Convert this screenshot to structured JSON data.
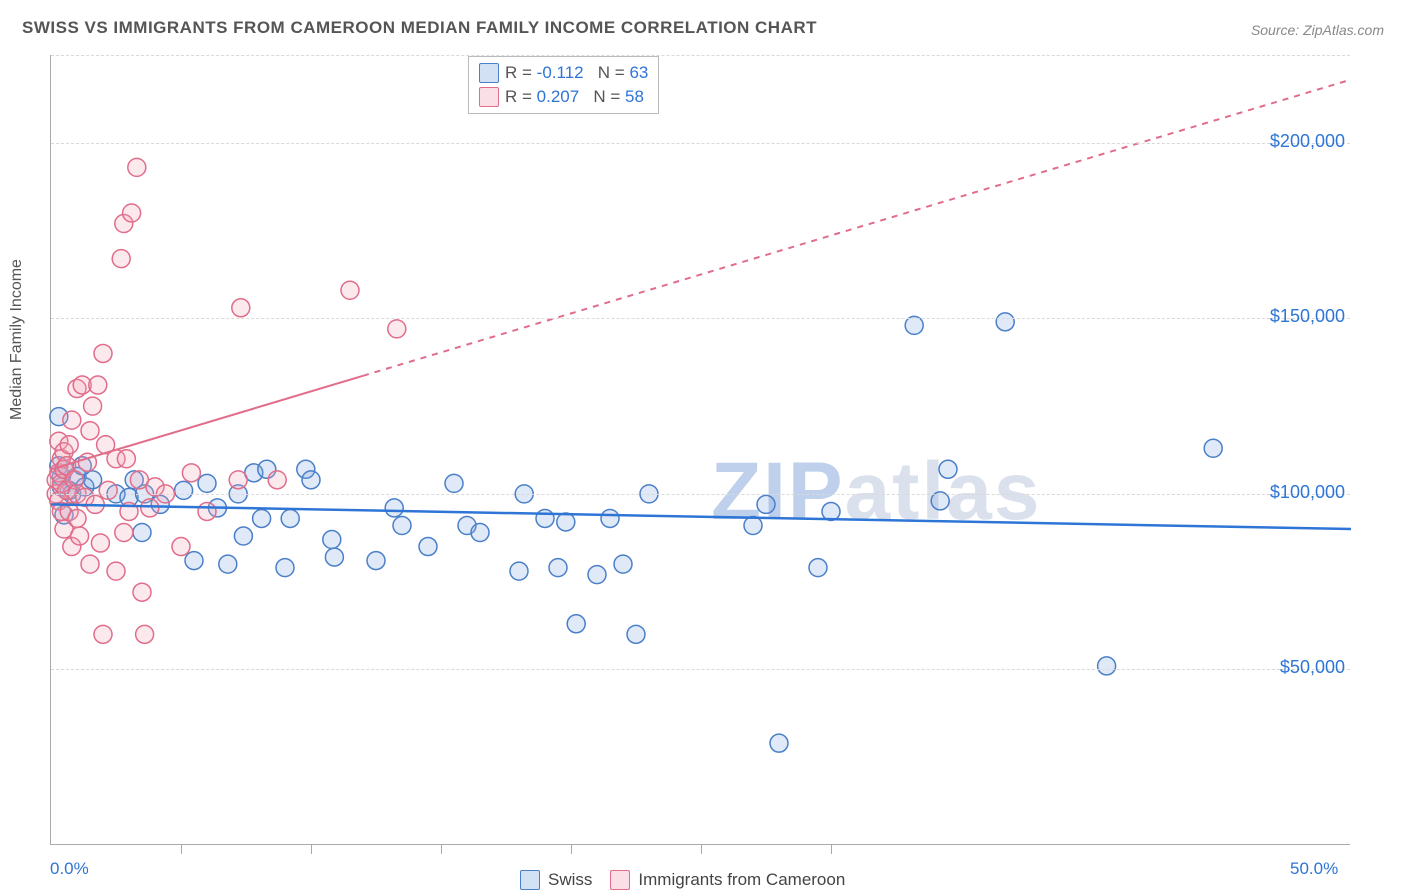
{
  "title": "SWISS VS IMMIGRANTS FROM CAMEROON MEDIAN FAMILY INCOME CORRELATION CHART",
  "source_label": "Source: ZipAtlas.com",
  "ylabel": "Median Family Income",
  "watermark": {
    "part1": "ZIP",
    "part2": "atlas"
  },
  "chart": {
    "type": "scatter",
    "background_color": "#ffffff",
    "grid_color": "#d9d9d9",
    "xlim": [
      0,
      50
    ],
    "ylim": [
      0,
      225000
    ],
    "xticks_minor": [
      5,
      10,
      15,
      20,
      25,
      30
    ],
    "x_axis_labels": [
      {
        "value": 0,
        "label": "0.0%",
        "color": "#2e75d6"
      },
      {
        "value": 50,
        "label": "50.0%",
        "color": "#2e75d6"
      }
    ],
    "y_gridlines": [
      50000,
      100000,
      150000,
      200000,
      225000
    ],
    "y_axis_labels": [
      {
        "value": 50000,
        "label": "$50,000",
        "color": "#2e75d6"
      },
      {
        "value": 100000,
        "label": "$100,000",
        "color": "#2e75d6"
      },
      {
        "value": 150000,
        "label": "$150,000",
        "color": "#2e75d6"
      },
      {
        "value": 200000,
        "label": "$200,000",
        "color": "#2e75d6"
      }
    ],
    "marker_radius": 9,
    "marker_stroke_width": 1.5,
    "marker_fill_opacity": 0.25,
    "series": [
      {
        "name": "Swiss",
        "color_fill": "#7ea8e0",
        "color_stroke": "#4a7fc9",
        "trend": {
          "y_at_x0": 97000,
          "y_at_x50": 90000,
          "dash": false,
          "color": "#2e75d6",
          "width": 2.5,
          "solid_until_x": 50
        },
        "stats": {
          "R": "-0.112",
          "N": "63"
        },
        "points": [
          [
            0.3,
            122000
          ],
          [
            0.3,
            108000
          ],
          [
            0.4,
            102000
          ],
          [
            0.4,
            105000
          ],
          [
            0.5,
            107000
          ],
          [
            0.5,
            94000
          ],
          [
            0.7,
            101000
          ],
          [
            0.8,
            100000
          ],
          [
            1.0,
            105000
          ],
          [
            1.2,
            108000
          ],
          [
            1.3,
            102000
          ],
          [
            1.6,
            104000
          ],
          [
            2.5,
            100000
          ],
          [
            3.0,
            99000
          ],
          [
            3.2,
            104000
          ],
          [
            3.5,
            89000
          ],
          [
            3.6,
            100000
          ],
          [
            4.2,
            97000
          ],
          [
            5.1,
            101000
          ],
          [
            5.5,
            81000
          ],
          [
            6.0,
            103000
          ],
          [
            6.4,
            96000
          ],
          [
            6.8,
            80000
          ],
          [
            7.2,
            100000
          ],
          [
            7.4,
            88000
          ],
          [
            7.8,
            106000
          ],
          [
            8.1,
            93000
          ],
          [
            8.3,
            107000
          ],
          [
            9.0,
            79000
          ],
          [
            9.2,
            93000
          ],
          [
            9.8,
            107000
          ],
          [
            10.0,
            104000
          ],
          [
            10.8,
            87000
          ],
          [
            10.9,
            82000
          ],
          [
            12.5,
            81000
          ],
          [
            13.2,
            96000
          ],
          [
            13.5,
            91000
          ],
          [
            14.5,
            85000
          ],
          [
            15.5,
            103000
          ],
          [
            16.0,
            91000
          ],
          [
            16.5,
            89000
          ],
          [
            18.2,
            100000
          ],
          [
            18.0,
            78000
          ],
          [
            19.0,
            93000
          ],
          [
            19.5,
            79000
          ],
          [
            19.8,
            92000
          ],
          [
            20.2,
            63000
          ],
          [
            21.0,
            77000
          ],
          [
            21.5,
            93000
          ],
          [
            22.0,
            80000
          ],
          [
            22.5,
            60000
          ],
          [
            23.0,
            100000
          ],
          [
            27.0,
            91000
          ],
          [
            27.5,
            97000
          ],
          [
            28.0,
            29000
          ],
          [
            29.5,
            79000
          ],
          [
            33.2,
            148000
          ],
          [
            34.2,
            98000
          ],
          [
            34.5,
            107000
          ],
          [
            36.7,
            149000
          ],
          [
            40.6,
            51000
          ],
          [
            44.7,
            113000
          ],
          [
            30.0,
            95000
          ]
        ]
      },
      {
        "name": "Immigrants from Cameroon",
        "color_fill": "#f2a7b8",
        "color_stroke": "#e16d8a",
        "trend": {
          "y_at_x0": 107000,
          "y_at_x50": 218000,
          "dash": true,
          "color": "#e16d8a",
          "width": 2,
          "solid_until_x": 12
        },
        "stats": {
          "R": "0.207",
          "N": "58"
        },
        "points": [
          [
            0.2,
            104000
          ],
          [
            0.2,
            100000
          ],
          [
            0.3,
            106000
          ],
          [
            0.3,
            98000
          ],
          [
            0.3,
            115000
          ],
          [
            0.4,
            103000
          ],
          [
            0.4,
            110000
          ],
          [
            0.4,
            95000
          ],
          [
            0.5,
            107000
          ],
          [
            0.5,
            112000
          ],
          [
            0.5,
            90000
          ],
          [
            0.6,
            101000
          ],
          [
            0.6,
            108000
          ],
          [
            0.7,
            95000
          ],
          [
            0.7,
            114000
          ],
          [
            0.8,
            121000
          ],
          [
            0.8,
            85000
          ],
          [
            0.9,
            104000
          ],
          [
            1.0,
            100000
          ],
          [
            1.0,
            93000
          ],
          [
            1.0,
            130000
          ],
          [
            1.1,
            88000
          ],
          [
            1.2,
            131000
          ],
          [
            1.3,
            99000
          ],
          [
            1.4,
            109000
          ],
          [
            1.5,
            80000
          ],
          [
            1.5,
            118000
          ],
          [
            1.6,
            125000
          ],
          [
            1.7,
            97000
          ],
          [
            1.8,
            131000
          ],
          [
            1.9,
            86000
          ],
          [
            2.0,
            140000
          ],
          [
            2.0,
            60000
          ],
          [
            2.1,
            114000
          ],
          [
            2.2,
            101000
          ],
          [
            2.5,
            78000
          ],
          [
            2.5,
            110000
          ],
          [
            2.7,
            167000
          ],
          [
            2.8,
            177000
          ],
          [
            2.8,
            89000
          ],
          [
            2.9,
            110000
          ],
          [
            3.0,
            95000
          ],
          [
            3.1,
            180000
          ],
          [
            3.3,
            193000
          ],
          [
            3.4,
            104000
          ],
          [
            3.5,
            72000
          ],
          [
            3.6,
            60000
          ],
          [
            3.8,
            96000
          ],
          [
            4.0,
            102000
          ],
          [
            4.4,
            100000
          ],
          [
            5.0,
            85000
          ],
          [
            5.4,
            106000
          ],
          [
            6.0,
            95000
          ],
          [
            7.2,
            104000
          ],
          [
            7.3,
            153000
          ],
          [
            8.7,
            104000
          ],
          [
            11.5,
            158000
          ],
          [
            13.3,
            147000
          ]
        ]
      }
    ]
  },
  "legend_top": {
    "rows": [
      {
        "swatch_fill": "rgba(126,168,224,0.35)",
        "swatch_stroke": "#4a7fc9",
        "r_label": "R = ",
        "r_value": "-0.112",
        "n_label": "N = ",
        "n_value": "63"
      },
      {
        "swatch_fill": "rgba(242,167,184,0.35)",
        "swatch_stroke": "#e16d8a",
        "r_label": "R = ",
        "r_value": "0.207",
        "n_label": "N = ",
        "n_value": "58"
      }
    ],
    "text_color": "#555555",
    "value_color": "#2e75d6"
  },
  "legend_bottom": {
    "items": [
      {
        "label": "Swiss",
        "swatch_fill": "rgba(126,168,224,0.35)",
        "swatch_stroke": "#4a7fc9"
      },
      {
        "label": "Immigrants from Cameroon",
        "swatch_fill": "rgba(242,167,184,0.35)",
        "swatch_stroke": "#e16d8a"
      }
    ]
  }
}
